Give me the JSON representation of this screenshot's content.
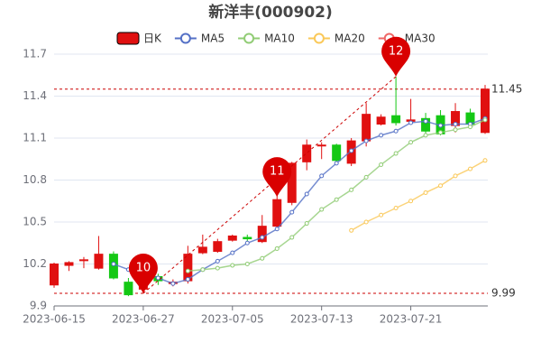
{
  "chart_data": {
    "type": "candlestick",
    "title": "新洋丰(000902)",
    "categories": [
      "2023-06-15",
      null,
      null,
      null,
      null,
      null,
      "2023-06-27",
      null,
      null,
      null,
      null,
      null,
      "2023-07-05",
      null,
      null,
      null,
      null,
      null,
      "2023-07-13",
      null,
      null,
      null,
      null,
      null,
      "2023-07-21",
      null,
      null,
      null,
      null,
      null
    ],
    "ylim": [
      9.9,
      11.7
    ],
    "yticks": [
      9.9,
      10.2,
      10.5,
      10.8,
      11.1,
      11.4,
      11.7
    ],
    "grid": true,
    "candles": {
      "name": "日K",
      "up_color": "#e01010",
      "down_color": "#14c814",
      "open": [
        10.05,
        10.19,
        10.23,
        10.17,
        10.27,
        10.07,
        10.02,
        10.11,
        10.06,
        10.08,
        10.28,
        10.29,
        10.37,
        10.39,
        10.36,
        10.47,
        10.64,
        10.93,
        11.05,
        11.05,
        10.92,
        11.08,
        11.2,
        11.26,
        11.22,
        11.24,
        11.26,
        11.19,
        11.28,
        11.14
      ],
      "close": [
        10.2,
        10.21,
        10.23,
        10.27,
        10.1,
        9.98,
        10.05,
        10.08,
        10.07,
        10.27,
        10.32,
        10.36,
        10.4,
        10.38,
        10.47,
        10.66,
        10.92,
        11.05,
        11.05,
        10.94,
        11.08,
        11.27,
        11.25,
        11.21,
        11.23,
        11.15,
        11.13,
        11.29,
        11.2,
        11.45
      ],
      "low": [
        10.03,
        10.15,
        10.17,
        10.16,
        10.09,
        9.97,
        9.99,
        10.05,
        10.04,
        10.06,
        10.27,
        10.28,
        10.36,
        10.34,
        10.35,
        10.45,
        10.62,
        10.87,
        10.95,
        10.93,
        10.9,
        11.04,
        11.19,
        11.19,
        11.2,
        11.13,
        11.12,
        11.14,
        11.18,
        11.13
      ],
      "high": [
        10.21,
        10.22,
        10.25,
        10.4,
        10.29,
        10.1,
        10.1,
        10.13,
        10.09,
        10.33,
        10.41,
        10.38,
        10.41,
        10.41,
        10.55,
        10.7,
        10.93,
        11.09,
        11.07,
        11.06,
        11.1,
        11.35,
        11.27,
        11.54,
        11.38,
        11.28,
        11.3,
        11.35,
        11.31,
        11.48
      ]
    },
    "series": [
      {
        "name": "MA5",
        "color": "#5470c6",
        "values": [
          null,
          null,
          null,
          null,
          10.2,
          10.16,
          10.13,
          10.1,
          10.06,
          10.09,
          10.16,
          10.22,
          10.28,
          10.35,
          10.39,
          10.45,
          10.57,
          10.7,
          10.83,
          10.92,
          11.01,
          11.08,
          11.12,
          11.15,
          11.21,
          11.22,
          11.19,
          11.2,
          11.2,
          11.24
        ]
      },
      {
        "name": "MA10",
        "color": "#91cc75",
        "values": [
          null,
          null,
          null,
          null,
          null,
          null,
          null,
          null,
          null,
          10.15,
          10.16,
          10.17,
          10.19,
          10.2,
          10.24,
          10.31,
          10.39,
          10.49,
          10.59,
          10.66,
          10.73,
          10.82,
          10.91,
          10.99,
          11.07,
          11.12,
          11.14,
          11.16,
          11.18,
          11.23
        ]
      },
      {
        "name": "MA20",
        "color": "#fac858",
        "values": [
          null,
          null,
          null,
          null,
          null,
          null,
          null,
          null,
          null,
          null,
          null,
          null,
          null,
          null,
          null,
          null,
          null,
          null,
          null,
          null,
          10.44,
          10.5,
          10.55,
          10.6,
          10.65,
          10.71,
          10.76,
          10.83,
          10.88,
          10.94
        ]
      },
      {
        "name": "MA30",
        "color": "#ee6666",
        "values": [
          null,
          null,
          null,
          null,
          null,
          null,
          null,
          null,
          null,
          null,
          null,
          null,
          null,
          null,
          null,
          null,
          null,
          null,
          null,
          null,
          null,
          null,
          null,
          null,
          null,
          null,
          null,
          null,
          null,
          null
        ]
      }
    ],
    "hlines": [
      {
        "value": 11.45
      },
      {
        "value": 9.99
      }
    ],
    "annotations": [
      {
        "label": "10",
        "index": 6,
        "value": 9.99
      },
      {
        "label": "11",
        "index": 15,
        "value": 10.68
      },
      {
        "label": "12",
        "index": 23,
        "value": 11.54
      }
    ]
  }
}
